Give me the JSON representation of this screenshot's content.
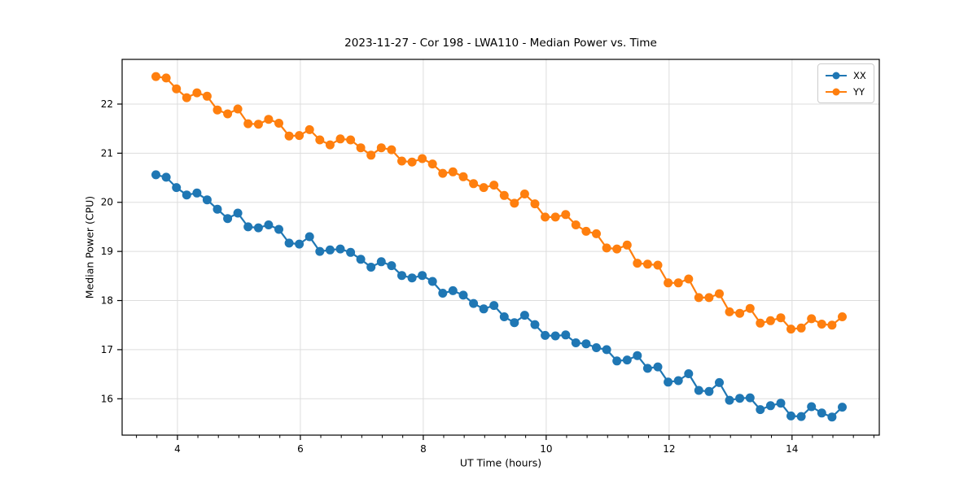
{
  "figure": {
    "background": "#ffffff"
  },
  "chart_data": {
    "type": "line",
    "title": "2023-11-27 - Cor 198 - LWA110 - Median Power vs. Time",
    "xlabel": "UT Time (hours)",
    "ylabel": "Median Power (CPU)",
    "xlim": [
      3.1,
      15.42
    ],
    "ylim": [
      15.26,
      22.91
    ],
    "xticks": [
      4,
      6,
      8,
      10,
      12,
      14
    ],
    "yticks": [
      16,
      17,
      18,
      19,
      20,
      21,
      22
    ],
    "minor_xtick_step": 0.3333,
    "grid": "major",
    "legend_position": "upper right",
    "colors": {
      "grid": "#dddddd",
      "spine": "#000000",
      "tick": "#000000"
    },
    "x": [
      3.65,
      3.817,
      3.983,
      4.15,
      4.317,
      4.483,
      4.65,
      4.817,
      4.983,
      5.15,
      5.317,
      5.483,
      5.65,
      5.817,
      5.983,
      6.15,
      6.317,
      6.483,
      6.65,
      6.817,
      6.983,
      7.15,
      7.317,
      7.483,
      7.65,
      7.817,
      7.983,
      8.15,
      8.317,
      8.483,
      8.65,
      8.817,
      8.983,
      9.15,
      9.317,
      9.483,
      9.65,
      9.817,
      9.983,
      10.15,
      10.317,
      10.483,
      10.65,
      10.817,
      10.983,
      11.15,
      11.317,
      11.483,
      11.65,
      11.817,
      11.983,
      12.15,
      12.317,
      12.483,
      12.65,
      12.817,
      12.983,
      13.15,
      13.317,
      13.483,
      13.65,
      13.817,
      13.983,
      14.15,
      14.317,
      14.483,
      14.65,
      14.817
    ],
    "series": [
      {
        "name": "XX",
        "color": "#1f77b4",
        "marker": "circle",
        "values": [
          20.56,
          20.51,
          20.3,
          20.15,
          20.19,
          20.05,
          19.86,
          19.67,
          19.78,
          19.5,
          19.48,
          19.54,
          19.45,
          19.17,
          19.15,
          19.3,
          19.0,
          19.03,
          19.05,
          18.98,
          18.84,
          18.68,
          18.79,
          18.71,
          18.51,
          18.46,
          18.51,
          18.39,
          18.15,
          18.2,
          18.11,
          17.94,
          17.83,
          17.9,
          17.67,
          17.55,
          17.7,
          17.51,
          17.29,
          17.28,
          17.3,
          17.14,
          17.12,
          17.04,
          17.0,
          16.77,
          16.79,
          16.88,
          16.62,
          16.65,
          16.34,
          16.37,
          16.51,
          16.17,
          16.15,
          16.33,
          15.97,
          16.01,
          16.02,
          15.78,
          15.86,
          15.91,
          15.65,
          15.64,
          15.84,
          15.71,
          15.63,
          15.83
        ]
      },
      {
        "name": "YY",
        "color": "#ff7f0e",
        "marker": "circle",
        "values": [
          22.56,
          22.53,
          22.31,
          22.13,
          22.23,
          22.16,
          21.88,
          21.8,
          21.9,
          21.6,
          21.59,
          21.69,
          21.61,
          21.35,
          21.36,
          21.48,
          21.27,
          21.17,
          21.29,
          21.27,
          21.11,
          20.96,
          21.11,
          21.07,
          20.84,
          20.82,
          20.89,
          20.78,
          20.59,
          20.62,
          20.52,
          20.38,
          20.3,
          20.35,
          20.14,
          19.98,
          20.17,
          19.97,
          19.7,
          19.7,
          19.75,
          19.54,
          19.41,
          19.36,
          19.07,
          19.05,
          19.13,
          18.76,
          18.74,
          18.72,
          18.36,
          18.36,
          18.44,
          18.06,
          18.06,
          18.14,
          17.77,
          17.74,
          17.84,
          17.54,
          17.59,
          17.65,
          17.42,
          17.44,
          17.63,
          17.52,
          17.5,
          17.67
        ]
      }
    ]
  }
}
